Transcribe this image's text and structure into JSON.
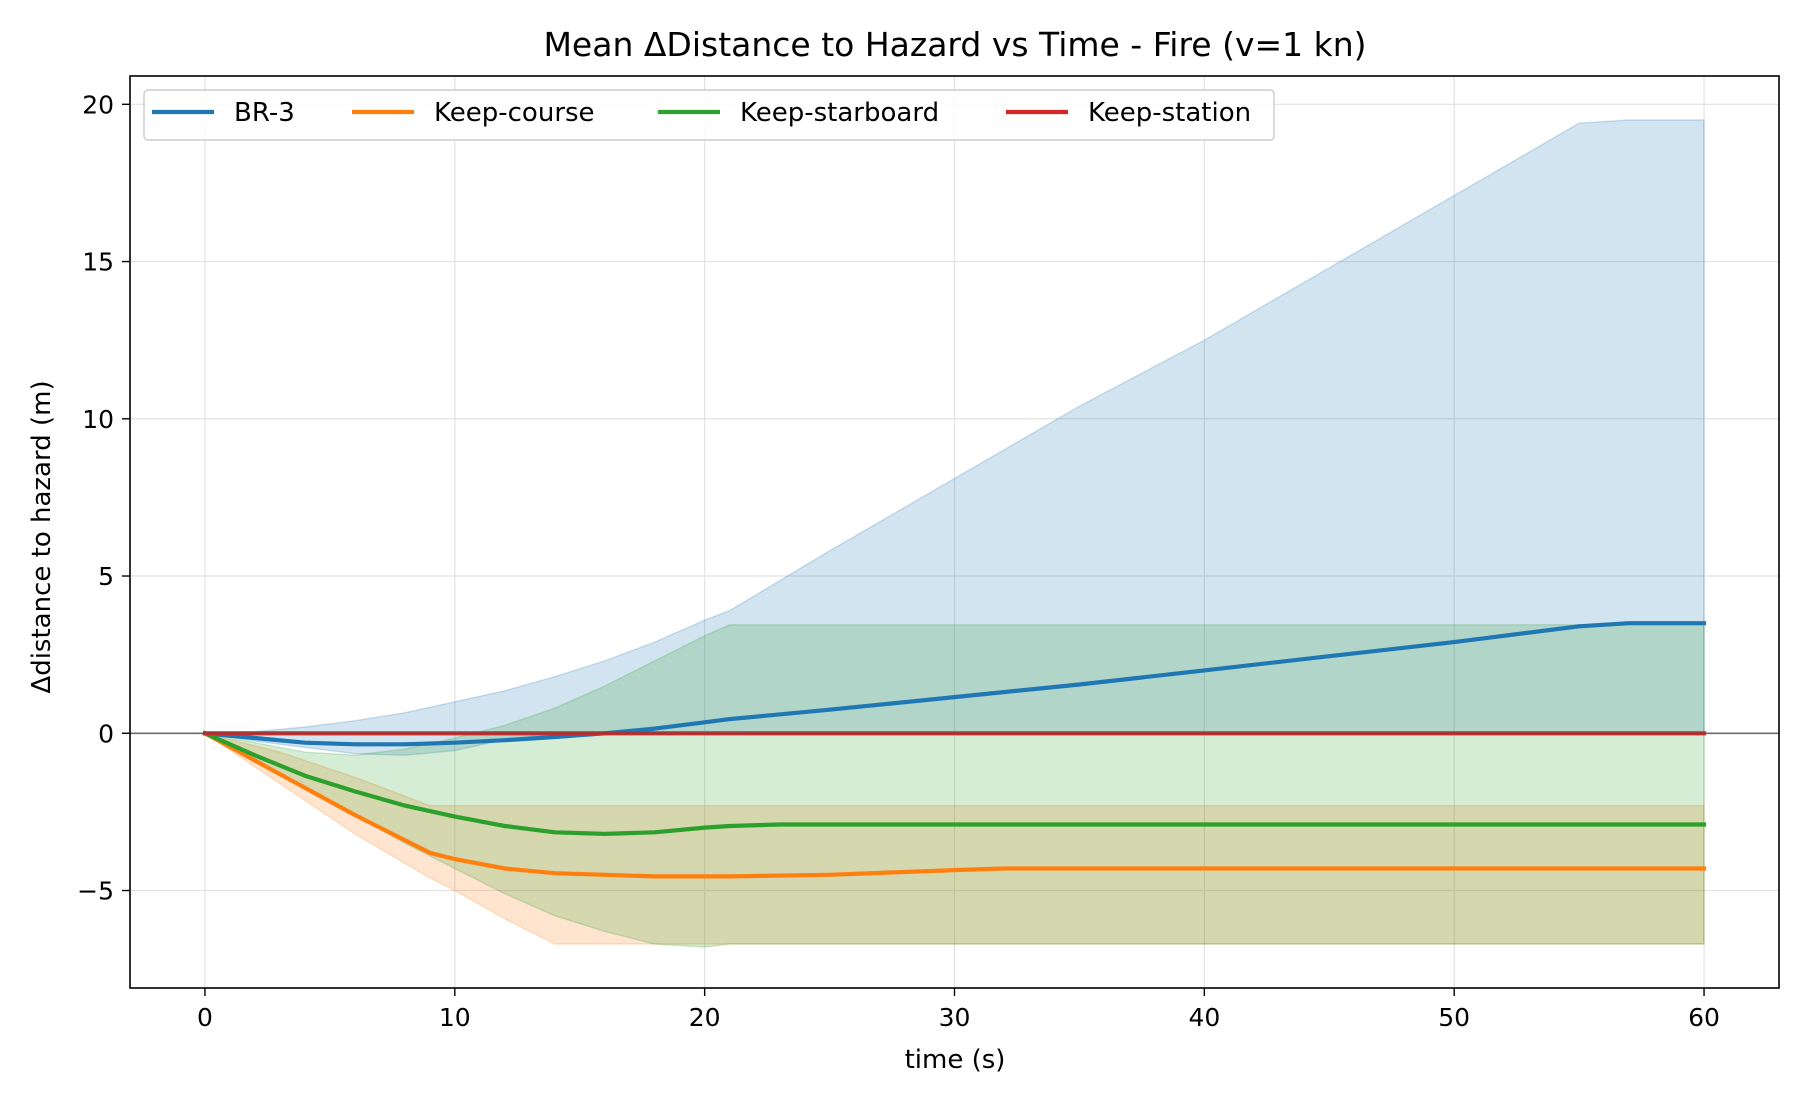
{
  "chart_data": {
    "type": "line",
    "title": "Mean ΔDistance to Hazard vs Time - Fire (v=1 kn)",
    "xlabel": "time (s)",
    "ylabel": "Δdistance to hazard (m)",
    "xlim": [
      -3,
      63
    ],
    "ylim": [
      -8.1,
      20.9
    ],
    "xticks": [
      0,
      10,
      20,
      30,
      40,
      50,
      60
    ],
    "xtick_labels": [
      "0",
      "10",
      "20",
      "30",
      "40",
      "50",
      "60"
    ],
    "yticks": [
      -5,
      0,
      5,
      10,
      15,
      20
    ],
    "ytick_labels": [
      "−5",
      "0",
      "5",
      "10",
      "15",
      "20"
    ],
    "grid": true,
    "legend_position": "top-left",
    "reference_line_y": 0,
    "series": [
      {
        "name": "BR-3",
        "color": "#1f77b4",
        "x": [
          0,
          2,
          4,
          6,
          8,
          10,
          12,
          14,
          16,
          18,
          20,
          21,
          25,
          30,
          35,
          40,
          45,
          50,
          55,
          57,
          60
        ],
        "y": [
          0,
          -0.15,
          -0.3,
          -0.35,
          -0.35,
          -0.3,
          -0.22,
          -0.12,
          0.0,
          0.15,
          0.35,
          0.45,
          0.75,
          1.15,
          1.55,
          2.0,
          2.45,
          2.9,
          3.4,
          3.5,
          3.5
        ],
        "band_upper": [
          0,
          0.05,
          0.2,
          0.4,
          0.65,
          1.0,
          1.35,
          1.8,
          2.3,
          2.9,
          3.6,
          3.9,
          5.8,
          8.1,
          10.4,
          12.5,
          14.8,
          17.1,
          19.4,
          19.5,
          19.5
        ],
        "band_lower": [
          0,
          -0.25,
          -0.45,
          -0.65,
          -0.7,
          -0.55,
          -0.2,
          0.0,
          0.0,
          0.0,
          0.0,
          0.0,
          0.0,
          0.0,
          0.0,
          0.0,
          0.0,
          0.0,
          0.0,
          0.0,
          0.0
        ]
      },
      {
        "name": "Keep-course",
        "color": "#ff7f0e",
        "x": [
          0,
          3,
          6,
          9,
          10,
          12,
          14,
          16,
          18,
          20,
          21,
          25,
          30,
          32,
          40,
          50,
          60
        ],
        "y": [
          0,
          -1.3,
          -2.6,
          -3.8,
          -4.0,
          -4.3,
          -4.45,
          -4.5,
          -4.55,
          -4.55,
          -4.55,
          -4.5,
          -4.35,
          -4.3,
          -4.3,
          -4.3,
          -4.3
        ],
        "band_upper": [
          0,
          -0.6,
          -1.4,
          -2.3,
          -2.3,
          -2.3,
          -2.3,
          -2.3,
          -2.3,
          -2.3,
          -2.3,
          -2.3,
          -2.3,
          -2.3,
          -2.3,
          -2.3,
          -2.3
        ],
        "band_lower": [
          0,
          -1.6,
          -3.2,
          -4.6,
          -5.0,
          -5.9,
          -6.7,
          -6.7,
          -6.7,
          -6.7,
          -6.7,
          -6.7,
          -6.7,
          -6.7,
          -6.7,
          -6.7,
          -6.7
        ]
      },
      {
        "name": "Keep-starboard",
        "color": "#2ca02c",
        "x": [
          0,
          2,
          4,
          6,
          8,
          10,
          12,
          14,
          16,
          18,
          20,
          21,
          23,
          25,
          30,
          40,
          50,
          60
        ],
        "y": [
          0,
          -0.7,
          -1.35,
          -1.85,
          -2.3,
          -2.65,
          -2.95,
          -3.15,
          -3.2,
          -3.15,
          -3.0,
          -2.95,
          -2.9,
          -2.9,
          -2.9,
          -2.9,
          -2.9,
          -2.9
        ],
        "band_upper": [
          0,
          -0.3,
          -0.6,
          -0.7,
          -0.5,
          -0.15,
          0.25,
          0.8,
          1.5,
          2.3,
          3.1,
          3.45,
          3.45,
          3.45,
          3.45,
          3.45,
          3.45,
          3.45
        ],
        "band_lower": [
          0,
          -0.85,
          -1.75,
          -2.6,
          -3.5,
          -4.3,
          -5.1,
          -5.8,
          -6.3,
          -6.7,
          -6.8,
          -6.7,
          -6.7,
          -6.7,
          -6.7,
          -6.7,
          -6.7,
          -6.7
        ]
      },
      {
        "name": "Keep-station",
        "color": "#d62728",
        "x": [
          0,
          60
        ],
        "y": [
          0,
          0
        ],
        "band_upper": null,
        "band_lower": null
      }
    ]
  }
}
